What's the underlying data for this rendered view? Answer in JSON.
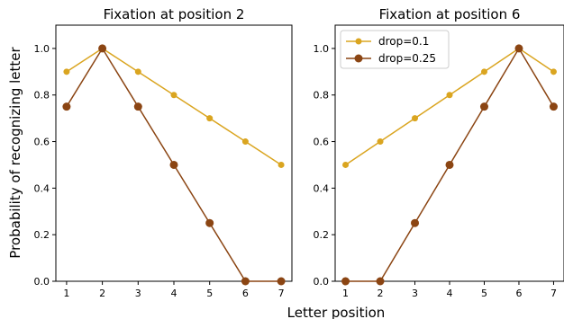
{
  "figure": {
    "ylabel": "Probability of recognizing letter",
    "xlabel": "Letter position"
  },
  "chart_data": [
    {
      "type": "line",
      "title": "Fixation at position 2",
      "x": [
        1,
        2,
        3,
        4,
        5,
        6,
        7
      ],
      "xticks": [
        "1",
        "2",
        "3",
        "4",
        "5",
        "6",
        "7"
      ],
      "yticks": [
        "0.0",
        "0.2",
        "0.4",
        "0.6",
        "0.8",
        "1.0"
      ],
      "xlim": [
        0.7,
        7.3
      ],
      "ylim": [
        0,
        1.1
      ],
      "grid": false,
      "legend": "none",
      "series": [
        {
          "name": "drop=0.1",
          "color": "#DAA520",
          "values": [
            0.9,
            1.0,
            0.9,
            0.8,
            0.7,
            0.6,
            0.5
          ]
        },
        {
          "name": "drop=0.25",
          "color": "#8B4513",
          "values": [
            0.75,
            1.0,
            0.75,
            0.5,
            0.25,
            0.0,
            0.0
          ]
        }
      ]
    },
    {
      "type": "line",
      "title": "Fixation at position 6",
      "x": [
        1,
        2,
        3,
        4,
        5,
        6,
        7
      ],
      "xticks": [
        "1",
        "2",
        "3",
        "4",
        "5",
        "6",
        "7"
      ],
      "yticks": [
        "0.0",
        "0.2",
        "0.4",
        "0.6",
        "0.8",
        "1.0"
      ],
      "xlim": [
        0.7,
        7.3
      ],
      "ylim": [
        0,
        1.1
      ],
      "grid": false,
      "legend": "top-left",
      "series": [
        {
          "name": "drop=0.1",
          "color": "#DAA520",
          "values": [
            0.5,
            0.6,
            0.7,
            0.8,
            0.9,
            1.0,
            0.9
          ]
        },
        {
          "name": "drop=0.25",
          "color": "#8B4513",
          "values": [
            0.0,
            0.0,
            0.25,
            0.5,
            0.75,
            1.0,
            0.75
          ]
        }
      ]
    }
  ]
}
